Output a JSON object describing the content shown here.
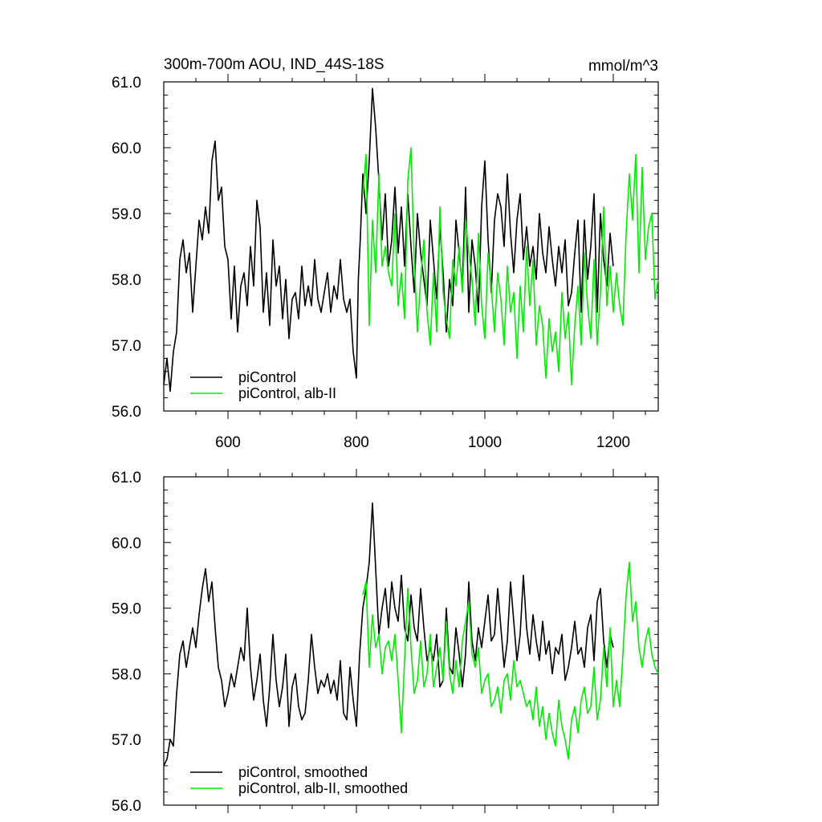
{
  "figure": {
    "title_left": "300m-700m AOU, IND_44S-18S",
    "title_right": "mmol/m^3"
  },
  "colors": {
    "piControl": "#000000",
    "alb_II": "#00ee00"
  },
  "chart_data": [
    {
      "type": "line",
      "title": "300m-700m AOU, IND_44S-18S",
      "units": "mmol/m^3",
      "xlim": [
        500,
        1270
      ],
      "ylim": [
        56.0,
        61.0
      ],
      "xticks": [
        600,
        800,
        1000,
        1200
      ],
      "xtick_labels": [
        "600",
        "800",
        "1000",
        "1200"
      ],
      "yticks": [
        56.0,
        57.0,
        58.0,
        59.0,
        60.0,
        61.0
      ],
      "ytick_labels": [
        "56.0",
        "57.0",
        "58.0",
        "59.0",
        "60.0",
        "61.0"
      ],
      "grid": false,
      "legend": "bottom-left",
      "series": [
        {
          "name": "piControl",
          "color": "#000000",
          "x": [
            500,
            505,
            510,
            515,
            520,
            525,
            530,
            535,
            540,
            545,
            550,
            555,
            560,
            565,
            570,
            575,
            580,
            585,
            590,
            595,
            600,
            605,
            610,
            615,
            620,
            625,
            630,
            635,
            640,
            645,
            650,
            655,
            660,
            665,
            670,
            675,
            680,
            685,
            690,
            695,
            700,
            705,
            710,
            715,
            720,
            725,
            730,
            735,
            740,
            745,
            750,
            755,
            760,
            765,
            770,
            775,
            780,
            785,
            790,
            795,
            800,
            803,
            806,
            810,
            815,
            820,
            825,
            830,
            835,
            840,
            845,
            850,
            855,
            860,
            865,
            870,
            875,
            880,
            885,
            890,
            895,
            900,
            905,
            910,
            915,
            920,
            925,
            930,
            935,
            940,
            945,
            950,
            955,
            960,
            965,
            970,
            975,
            980,
            985,
            990,
            995,
            1000,
            1005,
            1010,
            1015,
            1020,
            1025,
            1030,
            1035,
            1040,
            1045,
            1050,
            1055,
            1060,
            1065,
            1070,
            1075,
            1080,
            1085,
            1090,
            1095,
            1100,
            1105,
            1110,
            1115,
            1120,
            1125,
            1130,
            1135,
            1140,
            1145,
            1150,
            1155,
            1160,
            1165,
            1170,
            1175,
            1180,
            1185,
            1190,
            1195,
            1200
          ],
          "y": [
            56.4,
            56.8,
            56.3,
            56.9,
            57.2,
            58.3,
            58.6,
            58.1,
            58.4,
            57.5,
            58.2,
            58.9,
            58.6,
            59.1,
            58.7,
            59.8,
            60.1,
            59.2,
            59.4,
            58.5,
            58.3,
            57.4,
            58.2,
            57.2,
            57.9,
            58.1,
            57.6,
            58.5,
            57.9,
            59.2,
            58.8,
            57.5,
            58.1,
            57.3,
            58.6,
            57.9,
            58.2,
            57.4,
            58.0,
            57.1,
            57.7,
            57.8,
            57.4,
            58.2,
            57.6,
            57.9,
            57.6,
            58.3,
            57.7,
            57.5,
            57.8,
            58.1,
            57.5,
            57.9,
            57.7,
            58.3,
            57.7,
            57.5,
            57.7,
            56.9,
            56.5,
            58.0,
            58.6,
            59.6,
            59.0,
            59.8,
            60.9,
            60.3,
            59.5,
            58.6,
            59.3,
            58.2,
            58.6,
            59.4,
            58.4,
            59.1,
            58.2,
            59.3,
            58.5,
            57.8,
            59.0,
            58.4,
            58.0,
            57.6,
            58.9,
            58.3,
            57.7,
            58.8,
            58.1,
            57.2,
            58.0,
            57.6,
            58.9,
            58.4,
            57.9,
            59.4,
            57.5,
            58.6,
            58.2,
            57.5,
            59.1,
            59.8,
            58.6,
            57.8,
            58.9,
            59.3,
            59.1,
            58.5,
            59.6,
            58.7,
            58.1,
            58.9,
            59.3,
            58.3,
            58.8,
            58.2,
            58.5,
            58.0,
            59.0,
            58.4,
            58.1,
            58.8,
            58.3,
            57.9,
            58.5,
            58.1,
            58.6,
            57.6,
            57.8,
            58.4,
            58.9,
            57.5,
            58.9,
            58.0,
            58.5,
            59.3,
            57.5,
            59.0,
            58.3,
            57.9,
            58.7,
            58.2
          ]
        },
        {
          "name": "piControl, alb-II",
          "color": "#00ee00",
          "x": [
            810,
            815,
            820,
            825,
            830,
            835,
            840,
            845,
            850,
            855,
            860,
            865,
            870,
            875,
            880,
            885,
            890,
            895,
            900,
            905,
            910,
            915,
            920,
            925,
            930,
            935,
            940,
            945,
            950,
            955,
            960,
            965,
            970,
            975,
            980,
            985,
            990,
            995,
            1000,
            1005,
            1010,
            1015,
            1020,
            1025,
            1030,
            1035,
            1040,
            1045,
            1050,
            1055,
            1060,
            1065,
            1070,
            1075,
            1080,
            1085,
            1090,
            1095,
            1100,
            1105,
            1110,
            1115,
            1120,
            1125,
            1130,
            1135,
            1140,
            1145,
            1150,
            1155,
            1160,
            1165,
            1170,
            1175,
            1180,
            1185,
            1190,
            1195,
            1200,
            1205,
            1210,
            1215,
            1220,
            1225,
            1230,
            1235,
            1240,
            1245,
            1250,
            1255,
            1260,
            1265,
            1270
          ],
          "y": [
            59.3,
            59.9,
            57.3,
            58.9,
            58.1,
            59.6,
            58.2,
            58.5,
            58.1,
            57.9,
            59.0,
            57.6,
            58.1,
            57.4,
            59.5,
            60.0,
            58.3,
            57.2,
            58.0,
            58.6,
            57.5,
            57.0,
            58.1,
            57.2,
            59.1,
            57.8,
            57.4,
            57.1,
            58.3,
            57.9,
            58.5,
            57.8,
            58.9,
            58.4,
            58.0,
            57.3,
            58.7,
            57.6,
            57.1,
            58.4,
            57.9,
            57.2,
            58.1,
            57.7,
            57.0,
            58.2,
            57.5,
            57.8,
            56.8,
            57.9,
            57.2,
            58.5,
            57.6,
            58.3,
            57.0,
            57.6,
            57.3,
            56.5,
            57.4,
            56.9,
            57.2,
            56.6,
            57.8,
            57.1,
            57.5,
            56.4,
            57.3,
            57.9,
            57.0,
            58.4,
            57.6,
            57.1,
            58.3,
            57.0,
            57.8,
            59.1,
            57.6,
            58.2,
            57.5,
            58.1,
            57.6,
            57.3,
            58.7,
            59.6,
            58.9,
            59.9,
            58.1,
            59.7,
            58.3,
            58.8,
            59.0,
            57.7,
            58.0
          ]
        }
      ]
    },
    {
      "type": "line",
      "title": "",
      "xlim": [
        500,
        1270
      ],
      "ylim": [
        56.0,
        61.0
      ],
      "xticks": [
        600,
        800,
        1000,
        1200
      ],
      "xtick_labels": [],
      "yticks": [
        56.0,
        57.0,
        58.0,
        59.0,
        60.0,
        61.0
      ],
      "ytick_labels": [
        "56.0",
        "57.0",
        "58.0",
        "59.0",
        "60.0",
        "61.0"
      ],
      "grid": false,
      "legend": "bottom-left",
      "series": [
        {
          "name": "piControl, smoothed",
          "color": "#000000",
          "x": [
            500,
            505,
            510,
            515,
            520,
            525,
            530,
            535,
            540,
            545,
            550,
            555,
            560,
            565,
            570,
            575,
            580,
            585,
            590,
            595,
            600,
            605,
            610,
            615,
            620,
            625,
            630,
            635,
            640,
            645,
            650,
            655,
            660,
            665,
            670,
            675,
            680,
            685,
            690,
            695,
            700,
            705,
            710,
            715,
            720,
            725,
            730,
            735,
            740,
            745,
            750,
            755,
            760,
            765,
            770,
            775,
            780,
            785,
            790,
            795,
            800,
            805,
            810,
            815,
            820,
            825,
            830,
            835,
            840,
            845,
            850,
            855,
            860,
            865,
            870,
            875,
            880,
            885,
            890,
            895,
            900,
            905,
            910,
            915,
            920,
            925,
            930,
            935,
            940,
            945,
            950,
            955,
            960,
            965,
            970,
            975,
            980,
            985,
            990,
            995,
            1000,
            1005,
            1010,
            1015,
            1020,
            1025,
            1030,
            1035,
            1040,
            1045,
            1050,
            1055,
            1060,
            1065,
            1070,
            1075,
            1080,
            1085,
            1090,
            1095,
            1100,
            1105,
            1110,
            1115,
            1120,
            1125,
            1130,
            1135,
            1140,
            1145,
            1150,
            1155,
            1160,
            1165,
            1170,
            1175,
            1180,
            1185,
            1190,
            1195,
            1200
          ],
          "y": [
            56.6,
            56.7,
            57.0,
            56.9,
            57.7,
            58.3,
            58.5,
            58.1,
            58.4,
            58.7,
            58.4,
            58.9,
            59.3,
            59.6,
            59.1,
            59.4,
            58.7,
            58.1,
            57.9,
            57.5,
            57.7,
            58.0,
            57.8,
            58.1,
            58.4,
            58.2,
            59.0,
            58.1,
            57.6,
            57.9,
            58.3,
            57.6,
            57.2,
            57.8,
            58.6,
            57.9,
            57.5,
            57.8,
            58.3,
            57.2,
            57.8,
            58.0,
            57.5,
            57.3,
            57.4,
            57.9,
            58.6,
            58.1,
            57.7,
            57.9,
            57.8,
            58.0,
            57.7,
            57.9,
            57.6,
            58.2,
            57.4,
            57.3,
            58.1,
            57.6,
            57.2,
            58.3,
            59.0,
            59.3,
            59.7,
            60.6,
            59.6,
            58.6,
            59.0,
            59.3,
            58.7,
            59.4,
            59.0,
            58.8,
            59.5,
            58.7,
            58.5,
            59.2,
            58.7,
            58.5,
            59.3,
            58.7,
            58.2,
            58.4,
            58.2,
            58.6,
            57.8,
            57.9,
            59.0,
            58.1,
            58.0,
            58.7,
            58.3,
            57.8,
            58.3,
            59.4,
            58.5,
            58.2,
            58.7,
            58.4,
            58.8,
            59.2,
            58.5,
            58.6,
            59.3,
            58.7,
            58.1,
            58.5,
            59.4,
            58.8,
            58.2,
            58.6,
            59.5,
            58.7,
            58.3,
            58.9,
            58.5,
            58.2,
            58.8,
            58.3,
            58.5,
            58.0,
            58.4,
            58.3,
            58.6,
            57.9,
            58.1,
            58.4,
            58.8,
            58.3,
            58.4,
            58.1,
            58.7,
            58.9,
            58.2,
            59.1,
            59.3,
            58.5,
            58.1,
            58.6,
            58.4
          ]
        },
        {
          "name": "piControl, alb-II, smoothed",
          "color": "#00ee00",
          "x": [
            810,
            815,
            820,
            825,
            830,
            835,
            840,
            845,
            850,
            855,
            860,
            865,
            870,
            875,
            880,
            885,
            890,
            895,
            900,
            905,
            910,
            915,
            920,
            925,
            930,
            935,
            940,
            945,
            950,
            955,
            960,
            965,
            970,
            975,
            980,
            985,
            990,
            995,
            1000,
            1005,
            1010,
            1015,
            1020,
            1025,
            1030,
            1035,
            1040,
            1045,
            1050,
            1055,
            1060,
            1065,
            1070,
            1075,
            1080,
            1085,
            1090,
            1095,
            1100,
            1105,
            1110,
            1115,
            1120,
            1125,
            1130,
            1135,
            1140,
            1145,
            1150,
            1155,
            1160,
            1165,
            1170,
            1175,
            1180,
            1185,
            1190,
            1195,
            1200,
            1205,
            1210,
            1215,
            1220,
            1225,
            1230,
            1235,
            1240,
            1245,
            1250,
            1255,
            1260,
            1265,
            1270
          ],
          "y": [
            59.2,
            59.4,
            58.1,
            58.9,
            58.4,
            58.6,
            58.0,
            58.4,
            58.5,
            58.2,
            58.6,
            57.9,
            57.1,
            58.2,
            59.3,
            58.4,
            57.7,
            57.9,
            58.5,
            57.8,
            58.0,
            58.6,
            57.8,
            58.1,
            58.4,
            57.9,
            58.8,
            58.0,
            57.7,
            58.2,
            57.8,
            58.5,
            58.8,
            59.1,
            58.3,
            58.1,
            58.4,
            57.7,
            57.9,
            58.0,
            57.5,
            57.6,
            57.8,
            57.4,
            57.9,
            58.0,
            57.6,
            58.2,
            57.8,
            57.9,
            57.7,
            57.5,
            57.6,
            57.3,
            57.8,
            57.2,
            57.5,
            57.0,
            57.4,
            57.1,
            56.9,
            57.6,
            57.2,
            57.0,
            56.7,
            57.3,
            57.5,
            57.1,
            57.6,
            57.8,
            57.4,
            57.5,
            58.1,
            57.3,
            57.6,
            58.4,
            57.8,
            58.7,
            57.5,
            57.9,
            57.5,
            58.3,
            59.2,
            59.7,
            58.8,
            59.1,
            58.4,
            58.1,
            58.5,
            58.7,
            58.3,
            58.1,
            58.0
          ]
        }
      ]
    }
  ]
}
